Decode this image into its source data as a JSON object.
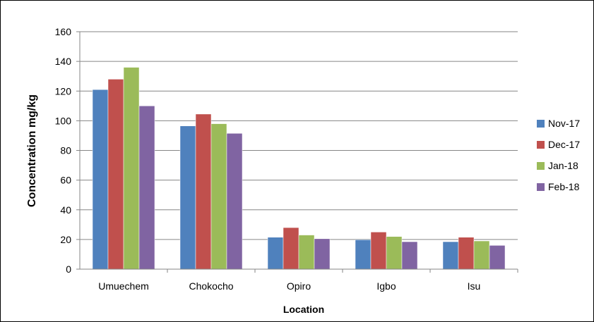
{
  "chart_data": {
    "type": "bar",
    "categories": [
      "Umuechem",
      "Chokocho",
      "Opiro",
      "Igbo",
      "Isu"
    ],
    "series": [
      {
        "name": "Nov-17",
        "color": "#4f81bd",
        "values": [
          121,
          96.5,
          21.5,
          19.8,
          18.5
        ]
      },
      {
        "name": "Dec-17",
        "color": "#c0504d",
        "values": [
          128,
          104.5,
          28,
          25,
          21.5
        ]
      },
      {
        "name": "Jan-18",
        "color": "#9bbb59",
        "values": [
          136,
          98,
          23,
          22,
          19
        ]
      },
      {
        "name": "Feb-18",
        "color": "#8064a2",
        "values": [
          110,
          91.5,
          20.5,
          18.5,
          16
        ]
      }
    ],
    "title": "",
    "xlabel": "Location",
    "ylabel": "Concentration mg/kg",
    "ylim": [
      0,
      160
    ],
    "yticks": [
      "0",
      "20",
      "40",
      "60",
      "80",
      "100",
      "120",
      "140",
      "160"
    ],
    "grid": true,
    "legend_position": "right"
  }
}
